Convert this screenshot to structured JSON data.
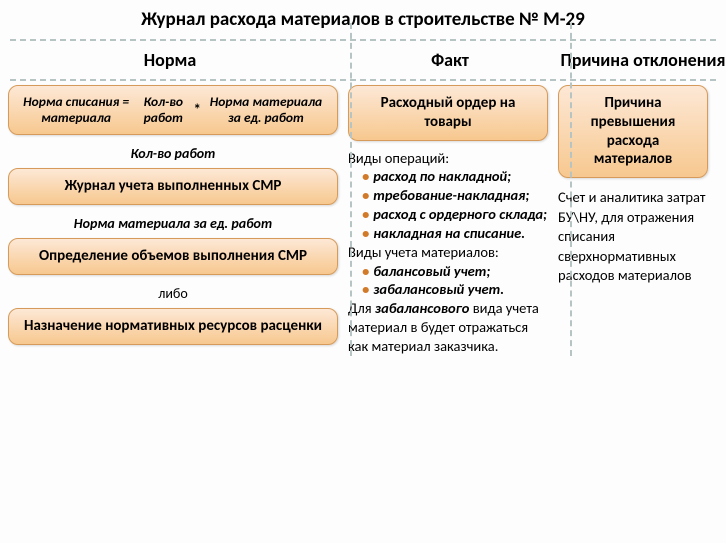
{
  "title": "Журнал расхода материалов    в строительстве № М-29",
  "headers": {
    "col1": "Норма",
    "col2": "Факт",
    "col3": "Причина отклонения"
  },
  "col1": {
    "formula": {
      "left": "Норма списания = материала",
      "mid": "Кол-во работ",
      "op": "*",
      "right": "Норма материала за ед. работ"
    },
    "label1": "Кол-во работ",
    "box1": "Журнал учета выполненных СМР",
    "label2": "Норма материала за ед. работ",
    "box2": "Определение объемов выполнения СМР",
    "libo": "либо",
    "box3": "Назначение нормативных ресурсов расценки"
  },
  "col2": {
    "box": "Расходный ордер на товары",
    "section1_lead": "Виды операций:",
    "ops": [
      "расход по накладной;",
      "требование-накладная;",
      "расход с ордерного склада;",
      "накладная на списание."
    ],
    "section2_lead": "Виды учета материалов:",
    "kinds": [
      "балансовый учет;",
      "забалансовый учет."
    ],
    "tail_pre": "Для ",
    "tail_em": "забалансового",
    "tail_post": " вида учета материал в будет отражаться как материал заказчика."
  },
  "col3": {
    "box": "Причина превышения расхода материалов",
    "text": "Счет и аналитика затрат БУ\\НУ, для отражения списания сверхнормативных расходов материалов"
  },
  "style": {
    "box_gradient_top": "#fde8d6",
    "box_gradient_bottom": "#f7c88f",
    "box_border": "#d69b5a",
    "dash_color": "#b6c4c4",
    "bullet_color": "#d17a2a",
    "title_fontsize": 19,
    "header_fontsize": 18,
    "box_fontsize": 15,
    "body_fontsize": 14.5
  }
}
